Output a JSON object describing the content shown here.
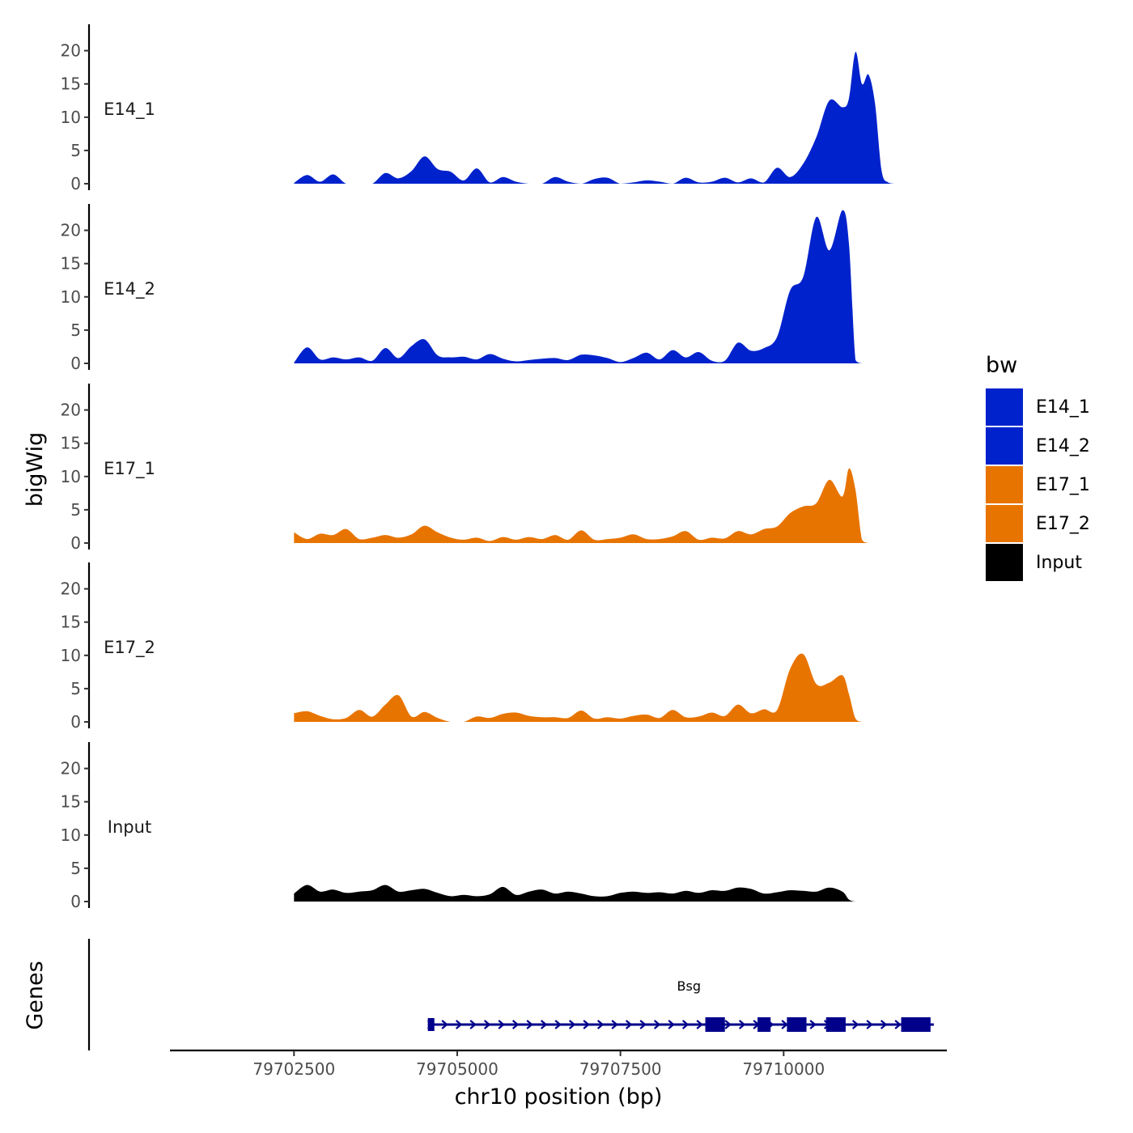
{
  "chart_data": {
    "type": "area",
    "x_label": "chr10 position (bp)",
    "y_label": "bigWig",
    "genes_label": "Genes",
    "x_range": [
      79700600,
      79712500
    ],
    "x_ticks": [
      79702500,
      79705000,
      79707500,
      79710000
    ],
    "x_tick_labels": [
      "79702500",
      "79705000",
      "79707500",
      "79710000"
    ],
    "y_range": [
      0,
      24
    ],
    "y_ticks": [
      0,
      5,
      10,
      15,
      20
    ],
    "y_tick_labels": [
      "0",
      "5",
      "10",
      "15",
      "20"
    ],
    "legend": {
      "title": "bw",
      "entries": [
        {
          "label": "E14_1",
          "color": "#0022CC"
        },
        {
          "label": "E14_2",
          "color": "#0022CC"
        },
        {
          "label": "E17_1",
          "color": "#E87400"
        },
        {
          "label": "E17_2",
          "color": "#E87400"
        },
        {
          "label": "Input",
          "color": "#000000"
        }
      ]
    },
    "x": [
      79702500,
      79702700,
      79702900,
      79703100,
      79703300,
      79703500,
      79703700,
      79703900,
      79704100,
      79704300,
      79704500,
      79704700,
      79704900,
      79705100,
      79705300,
      79705500,
      79705700,
      79705900,
      79706100,
      79706300,
      79706500,
      79706700,
      79706900,
      79707100,
      79707300,
      79707500,
      79707700,
      79707900,
      79708100,
      79708300,
      79708500,
      79708700,
      79708900,
      79709100,
      79709300,
      79709500,
      79709700,
      79709900,
      79710100,
      79710300,
      79710500,
      79710700,
      79710900,
      79711000,
      79711100,
      79711200,
      79711300,
      79711400,
      79711500,
      79711600,
      79711700,
      79711800
    ],
    "series": [
      {
        "name": "E14_1",
        "color": "#0022CC",
        "values": [
          0.1,
          1.3,
          0.3,
          1.4,
          0,
          0,
          0,
          1.6,
          0.8,
          1.9,
          4.1,
          2.2,
          1.8,
          0.5,
          2.3,
          0.2,
          1.0,
          0.3,
          0,
          0,
          1.0,
          0.3,
          0,
          0.7,
          0.9,
          0,
          0.2,
          0.5,
          0.3,
          0,
          0.9,
          0.2,
          0.3,
          0.9,
          0.2,
          0.8,
          0.2,
          2.4,
          1.0,
          3.0,
          7.0,
          12.5,
          11.5,
          12.8,
          19.8,
          15.0,
          16.4,
          12.0,
          2.0,
          0.2,
          0,
          0
        ]
      },
      {
        "name": "E14_2",
        "color": "#0022CC",
        "values": [
          0.1,
          2.4,
          0.6,
          0.9,
          0.6,
          0.9,
          0.4,
          2.3,
          0.8,
          2.6,
          3.6,
          1.2,
          0.9,
          1.0,
          0.6,
          1.4,
          0.7,
          0.3,
          0.5,
          0.7,
          0.8,
          0.5,
          1.3,
          1.2,
          0.8,
          0.2,
          0.8,
          1.6,
          0.6,
          2.0,
          0.9,
          1.7,
          0.4,
          0.4,
          3.1,
          1.9,
          2.3,
          4.0,
          11.0,
          13.0,
          22.0,
          17.0,
          23.0,
          18.0,
          0.5,
          0,
          0,
          0,
          0,
          0,
          0,
          0
        ]
      },
      {
        "name": "E17_1",
        "color": "#E87400",
        "values": [
          1.6,
          0.6,
          1.4,
          1.2,
          2.1,
          0.6,
          0.8,
          1.2,
          0.8,
          1.3,
          2.6,
          1.6,
          0.8,
          0.5,
          0.8,
          0.3,
          0.9,
          0.5,
          0.9,
          0.6,
          1.2,
          0.5,
          1.9,
          0.5,
          0.6,
          0.8,
          1.3,
          0.6,
          0.6,
          1.0,
          1.8,
          0.5,
          0.8,
          0.7,
          1.8,
          1.3,
          2.1,
          2.5,
          4.5,
          5.5,
          6.0,
          9.5,
          7.0,
          11.2,
          8.0,
          0.5,
          0,
          0,
          0,
          0,
          0,
          0
        ]
      },
      {
        "name": "E17_2",
        "color": "#E87400",
        "values": [
          1.3,
          1.6,
          0.9,
          0.4,
          0.6,
          1.8,
          0.8,
          2.6,
          4.0,
          0.8,
          1.5,
          0.6,
          0,
          0,
          0.8,
          0.6,
          1.2,
          1.4,
          0.9,
          0.7,
          0.7,
          0.6,
          1.7,
          0.5,
          0.7,
          0.5,
          0.9,
          1.1,
          0.6,
          1.8,
          0.7,
          0.8,
          1.4,
          0.9,
          2.6,
          1.3,
          1.9,
          1.8,
          8.0,
          10.2,
          5.7,
          5.9,
          7.0,
          4.2,
          0.5,
          0,
          0,
          0,
          0,
          0,
          0,
          0
        ]
      },
      {
        "name": "Input",
        "color": "#000000",
        "values": [
          1.2,
          2.5,
          1.5,
          1.8,
          1.3,
          1.5,
          1.7,
          2.5,
          1.5,
          1.7,
          1.9,
          1.3,
          0.8,
          1.0,
          0.8,
          1.1,
          2.2,
          1.0,
          1.5,
          1.8,
          1.2,
          1.5,
          1.2,
          0.8,
          0.8,
          1.3,
          1.5,
          1.3,
          1.4,
          1.2,
          1.6,
          1.3,
          1.7,
          1.6,
          2.1,
          1.9,
          1.2,
          1.4,
          1.7,
          1.6,
          1.5,
          2.1,
          1.5,
          0.3,
          0,
          0,
          0,
          0,
          0,
          0,
          0,
          0
        ]
      }
    ],
    "gene": {
      "name": "Bsg",
      "strand": "+",
      "start": 79704550,
      "end": 79712300,
      "exons": [
        [
          79704550,
          79704650
        ],
        [
          79708800,
          79709100
        ],
        [
          79709600,
          79709800
        ],
        [
          79710050,
          79710350
        ],
        [
          79710650,
          79710950
        ],
        [
          79711800,
          79712250
        ]
      ]
    }
  }
}
